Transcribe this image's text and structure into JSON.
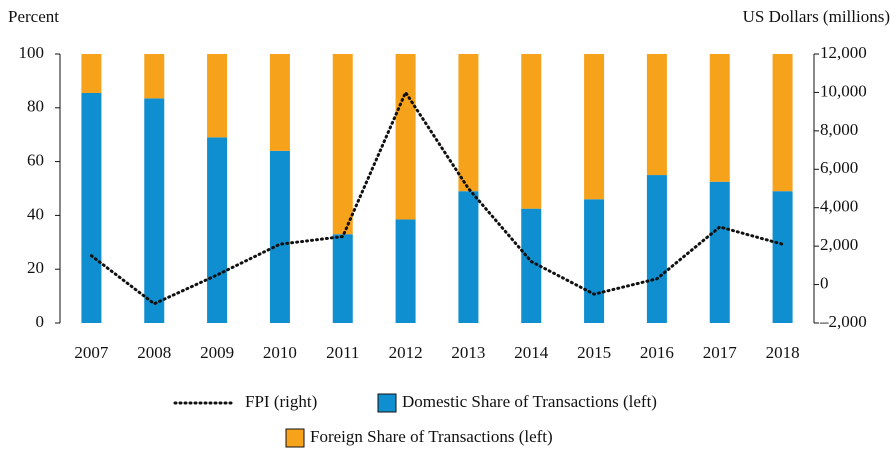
{
  "chart_data": {
    "type": "bar",
    "stacked": true,
    "ylabel": "Percent",
    "y2label": "US Dollars (millions)",
    "categories": [
      "2007",
      "2008",
      "2009",
      "2010",
      "2011",
      "2012",
      "2013",
      "2014",
      "2015",
      "2016",
      "2017",
      "2018"
    ],
    "series": [
      {
        "name": "FPI (right)",
        "type": "line",
        "axis": "y2",
        "color": "#111111",
        "style": "dotted",
        "values": [
          1500,
          -1000,
          500,
          2100,
          2500,
          10000,
          5000,
          1200,
          -500,
          300,
          3000,
          2100
        ]
      },
      {
        "name": "Domestic Share of Transactions (left)",
        "type": "bar",
        "color": "#0f8ed0",
        "values": [
          85.5,
          83.5,
          69,
          64,
          33,
          38.5,
          49,
          42.5,
          46,
          55,
          52.5,
          49
        ]
      },
      {
        "name": "Foreign Share of Transactions (left)",
        "type": "bar",
        "color": "#f7a21b",
        "values": [
          14.5,
          16.5,
          31,
          36,
          67,
          61.5,
          51,
          57.5,
          54,
          45,
          47.5,
          51
        ]
      }
    ],
    "ylim": [
      0,
      100
    ],
    "yticks": [
      0,
      20,
      40,
      60,
      80,
      100
    ],
    "y2lim": [
      -2000,
      12000
    ],
    "y2ticks": [
      {
        "value": -2000,
        "label": "–2,000"
      },
      0,
      {
        "value": 2000,
        "label": "2,000"
      },
      {
        "value": 4000,
        "label": "4,000"
      },
      {
        "value": 6000,
        "label": "6,000"
      },
      {
        "value": 8000,
        "label": "8,000"
      },
      {
        "value": 10000,
        "label": "10,000"
      },
      {
        "value": 12000,
        "label": "12,000"
      }
    ],
    "grid": false
  }
}
